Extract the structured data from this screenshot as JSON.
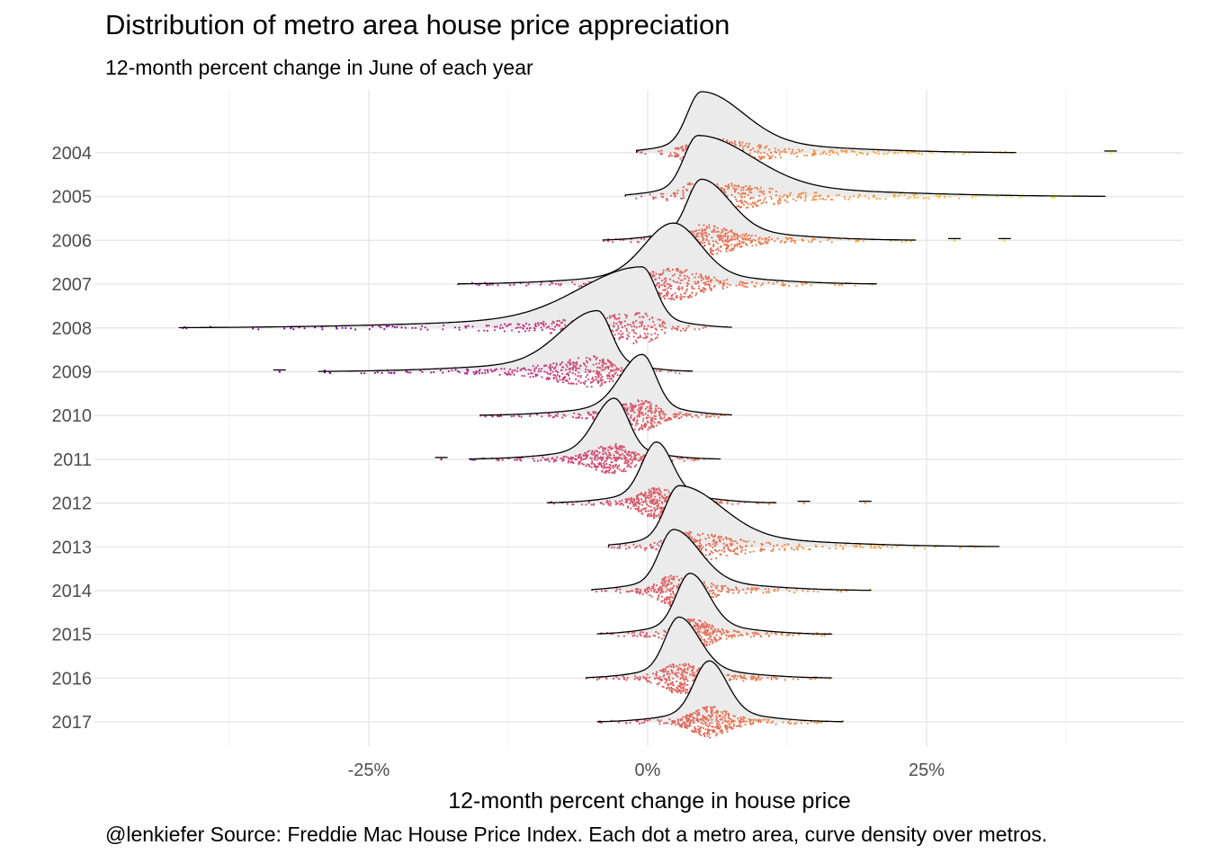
{
  "chart_data": {
    "type": "ridgeline",
    "title": "Distribution of metro area house price appreciation",
    "subtitle": "12-month percent change in June of each year",
    "xlabel": "12-month percent change in house price",
    "ylabel": "",
    "caption": "@lenkiefer Source: Freddie Mac House Price Index. Each dot a metro area, curve density over metros.",
    "xlim": [
      -50,
      48
    ],
    "x_tick_values": [
      -25,
      0,
      25
    ],
    "x_tick_labels": [
      "-25%",
      "0%",
      "25%"
    ],
    "grid": true,
    "fill_color": "#ebebeb",
    "line_color": "#000000",
    "dot_colormap": [
      "#7e03a8",
      "#cc4778",
      "#f89540",
      "#f0f921"
    ],
    "categories": [
      "2004",
      "2005",
      "2006",
      "2007",
      "2008",
      "2009",
      "2010",
      "2011",
      "2012",
      "2013",
      "2014",
      "2015",
      "2016",
      "2017"
    ],
    "series": [
      {
        "year": "2004",
        "mode": 4.8,
        "min": -1,
        "max": 33,
        "outliers": [
          41.5
        ]
      },
      {
        "year": "2005",
        "mode": 4.5,
        "min": -2,
        "max": 41,
        "outliers": []
      },
      {
        "year": "2006",
        "mode": 4.8,
        "min": -4,
        "max": 24,
        "outliers": [
          27.5,
          32
        ]
      },
      {
        "year": "2007",
        "mode": 2.3,
        "min": -17,
        "max": 20.5,
        "outliers": []
      },
      {
        "year": "2008",
        "mode": -0.5,
        "min": -42,
        "max": 7.5,
        "outliers": []
      },
      {
        "year": "2009",
        "mode": -4.5,
        "min": -29.5,
        "max": 4,
        "outliers": [
          -33
        ]
      },
      {
        "year": "2010",
        "mode": -0.5,
        "min": -15,
        "max": 7.5,
        "outliers": []
      },
      {
        "year": "2011",
        "mode": -3,
        "min": -16,
        "max": 6.5,
        "outliers": [
          -18.5
        ]
      },
      {
        "year": "2012",
        "mode": 0.8,
        "min": -9,
        "max": 11.5,
        "outliers": [
          14,
          19.5
        ]
      },
      {
        "year": "2013",
        "mode": 2.8,
        "min": -3.5,
        "max": 31.5,
        "outliers": []
      },
      {
        "year": "2014",
        "mode": 2.3,
        "min": -5,
        "max": 20,
        "outliers": []
      },
      {
        "year": "2015",
        "mode": 3.8,
        "min": -4.5,
        "max": 16.5,
        "outliers": []
      },
      {
        "year": "2016",
        "mode": 2.8,
        "min": -5.5,
        "max": 16.5,
        "outliers": []
      },
      {
        "year": "2017",
        "mode": 5.5,
        "min": -4.5,
        "max": 17.5,
        "outliers": []
      }
    ]
  }
}
